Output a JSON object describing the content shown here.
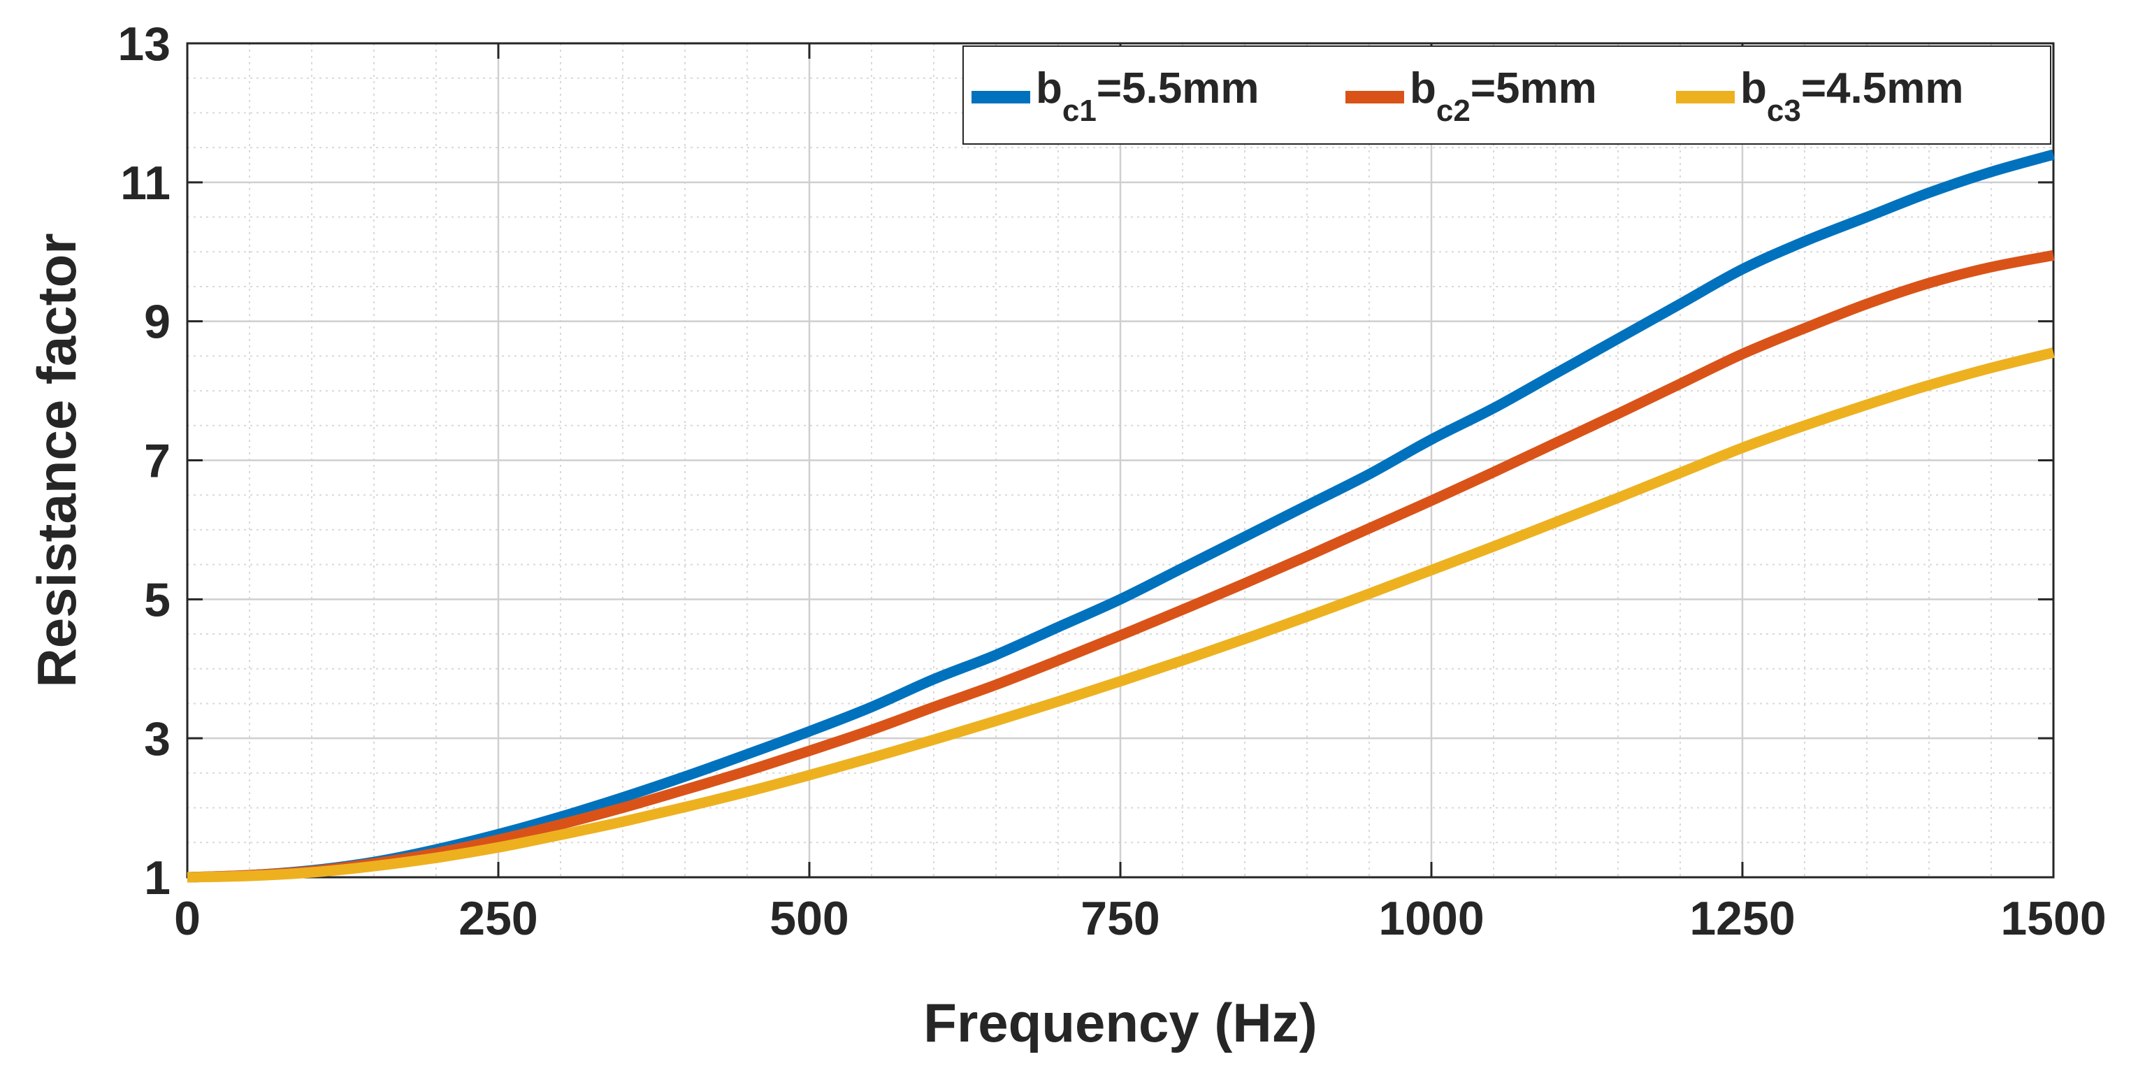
{
  "chart_data": {
    "type": "line",
    "title": "",
    "xlabel": "Frequency (Hz)",
    "ylabel": "Resistance factor",
    "xlim": [
      0,
      1500
    ],
    "ylim": [
      1,
      13
    ],
    "xticks": [
      0,
      250,
      500,
      750,
      1000,
      1250,
      1500
    ],
    "yticks": [
      1,
      3,
      5,
      7,
      9,
      11,
      13
    ],
    "xtick_labels": [
      "0",
      "250",
      "500",
      "750",
      "1000",
      "1250",
      "1500"
    ],
    "ytick_labels": [
      "1",
      "3",
      "5",
      "7",
      "9",
      "11",
      "13"
    ],
    "grid": true,
    "minor_grid": true,
    "legend_position": "top-right",
    "x": [
      0,
      50,
      100,
      150,
      200,
      250,
      300,
      350,
      400,
      450,
      500,
      550,
      600,
      650,
      700,
      750,
      800,
      850,
      900,
      950,
      1000,
      1050,
      1100,
      1150,
      1200,
      1250,
      1300,
      1350,
      1400,
      1450,
      1500
    ],
    "series": [
      {
        "name": "bc1=5.5mm",
        "label_main": "b",
        "label_sub": "c1",
        "label_rest": "=5.5mm",
        "color": "#0072BD",
        "values": [
          1.0,
          1.03,
          1.1,
          1.22,
          1.4,
          1.62,
          1.87,
          2.15,
          2.45,
          2.77,
          3.1,
          3.45,
          3.85,
          4.2,
          4.6,
          5.0,
          5.45,
          5.9,
          6.35,
          6.8,
          7.3,
          7.75,
          8.25,
          8.75,
          9.25,
          9.75,
          10.15,
          10.5,
          10.85,
          11.15,
          11.4
        ]
      },
      {
        "name": "bc2=5mm",
        "label_main": "b",
        "label_sub": "c2",
        "label_rest": "=5mm",
        "color": "#D95319",
        "values": [
          1.0,
          1.03,
          1.09,
          1.2,
          1.35,
          1.54,
          1.76,
          2.0,
          2.26,
          2.53,
          2.82,
          3.12,
          3.45,
          3.77,
          4.12,
          4.48,
          4.85,
          5.23,
          5.62,
          6.02,
          6.42,
          6.83,
          7.25,
          7.67,
          8.1,
          8.53,
          8.9,
          9.25,
          9.55,
          9.78,
          9.95
        ]
      },
      {
        "name": "bc3=4.5mm",
        "label_main": "b",
        "label_sub": "c3",
        "label_rest": "=4.5mm",
        "color": "#EDB120",
        "values": [
          1.0,
          1.02,
          1.07,
          1.16,
          1.28,
          1.43,
          1.61,
          1.8,
          2.01,
          2.23,
          2.47,
          2.72,
          2.98,
          3.25,
          3.53,
          3.82,
          4.12,
          4.43,
          4.75,
          5.08,
          5.42,
          5.76,
          6.11,
          6.46,
          6.82,
          7.18,
          7.5,
          7.8,
          8.08,
          8.33,
          8.55
        ]
      }
    ]
  }
}
